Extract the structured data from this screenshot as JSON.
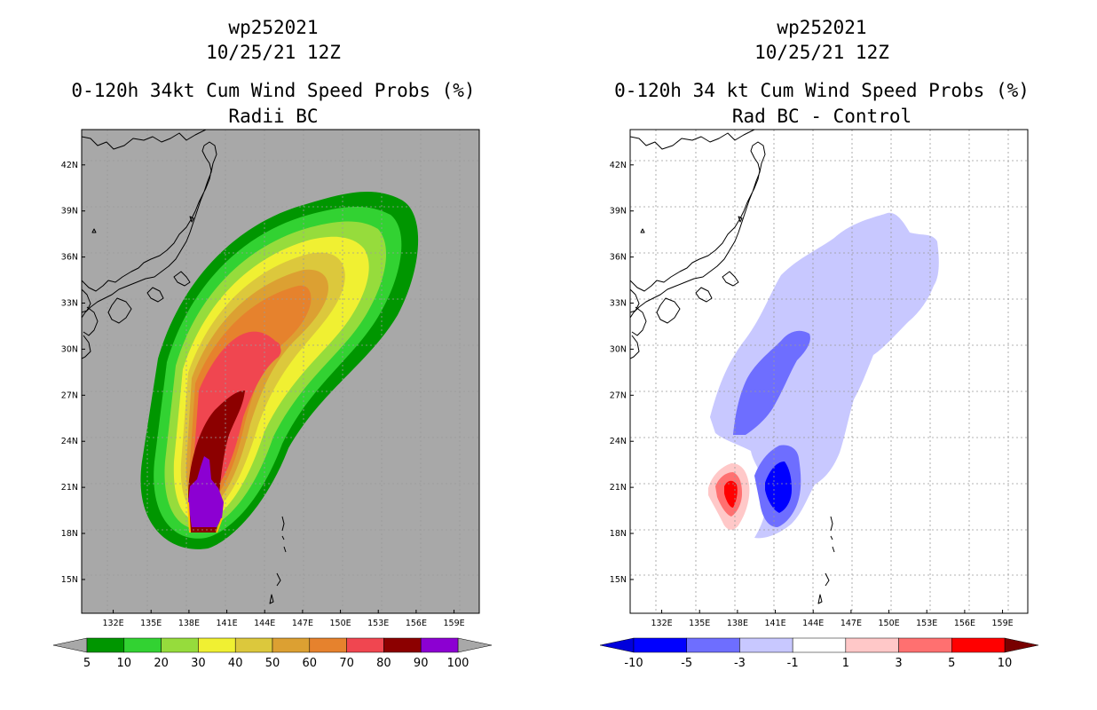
{
  "left": {
    "title_lines": [
      "wp252021",
      "10/25/21 12Z",
      "0-120h 34kt Cum Wind Speed Probs (%)",
      "Radii BC"
    ],
    "colorbar": {
      "labels": [
        "5",
        "10",
        "20",
        "30",
        "40",
        "50",
        "60",
        "70",
        "80",
        "90",
        "100"
      ],
      "colors": [
        "#009600",
        "#32d232",
        "#96dc3c",
        "#f0f032",
        "#dcc83c",
        "#dca032",
        "#e6822d",
        "#f04650",
        "#8c0000",
        "#8c00d2"
      ]
    }
  },
  "right": {
    "title_lines": [
      "wp252021",
      "10/25/21 12Z",
      "0-120h 34 kt Cum Wind Speed Probs (%)",
      "Rad BC - Control"
    ],
    "colorbar": {
      "labels": [
        "-10",
        "-5",
        "-3",
        "-1",
        "1",
        "3",
        "5",
        "10"
      ],
      "colors": [
        "#0000dc",
        "#0000ff",
        "#6e6eff",
        "#c8c8ff",
        "#ffffff",
        "#ffc8c8",
        "#ff7070",
        "#ff0000",
        "#780000"
      ]
    }
  },
  "colors": {
    "land_mask": "#a8a8a8",
    "map_bg": "#ffffff"
  },
  "chart_data": [
    {
      "type": "heatmap",
      "title": "0-120h 34kt Cum Wind Speed Probs (%)",
      "subtitle": "Radii BC",
      "storm": "wp252021",
      "date": "10/25/21 12Z",
      "x_ticks": [
        "132E",
        "135E",
        "138E",
        "141E",
        "144E",
        "147E",
        "150E",
        "153E",
        "156E",
        "159E"
      ],
      "y_ticks": [
        "15N",
        "18N",
        "21N",
        "24N",
        "27N",
        "30N",
        "33N",
        "36N",
        "39N",
        "42N"
      ],
      "xlim": [
        129.5,
        161.0
      ],
      "ylim": [
        12.8,
        44.3
      ],
      "levels": [
        5,
        10,
        20,
        30,
        40,
        50,
        60,
        70,
        80,
        90,
        100
      ],
      "units": "%"
    },
    {
      "type": "heatmap",
      "title": "0-120h 34 kt Cum Wind Speed Probs (%)",
      "subtitle": "Rad BC - Control",
      "storm": "wp252021",
      "date": "10/25/21 12Z",
      "x_ticks": [
        "132E",
        "135E",
        "138E",
        "141E",
        "144E",
        "147E",
        "150E",
        "153E",
        "156E",
        "159E"
      ],
      "y_ticks": [
        "15N",
        "18N",
        "21N",
        "24N",
        "27N",
        "30N",
        "33N",
        "36N",
        "39N",
        "42N"
      ],
      "xlim": [
        129.5,
        161.0
      ],
      "ylim": [
        12.8,
        44.3
      ],
      "levels": [
        -10,
        -5,
        -3,
        -1,
        1,
        3,
        5,
        10
      ],
      "units": "%"
    }
  ]
}
